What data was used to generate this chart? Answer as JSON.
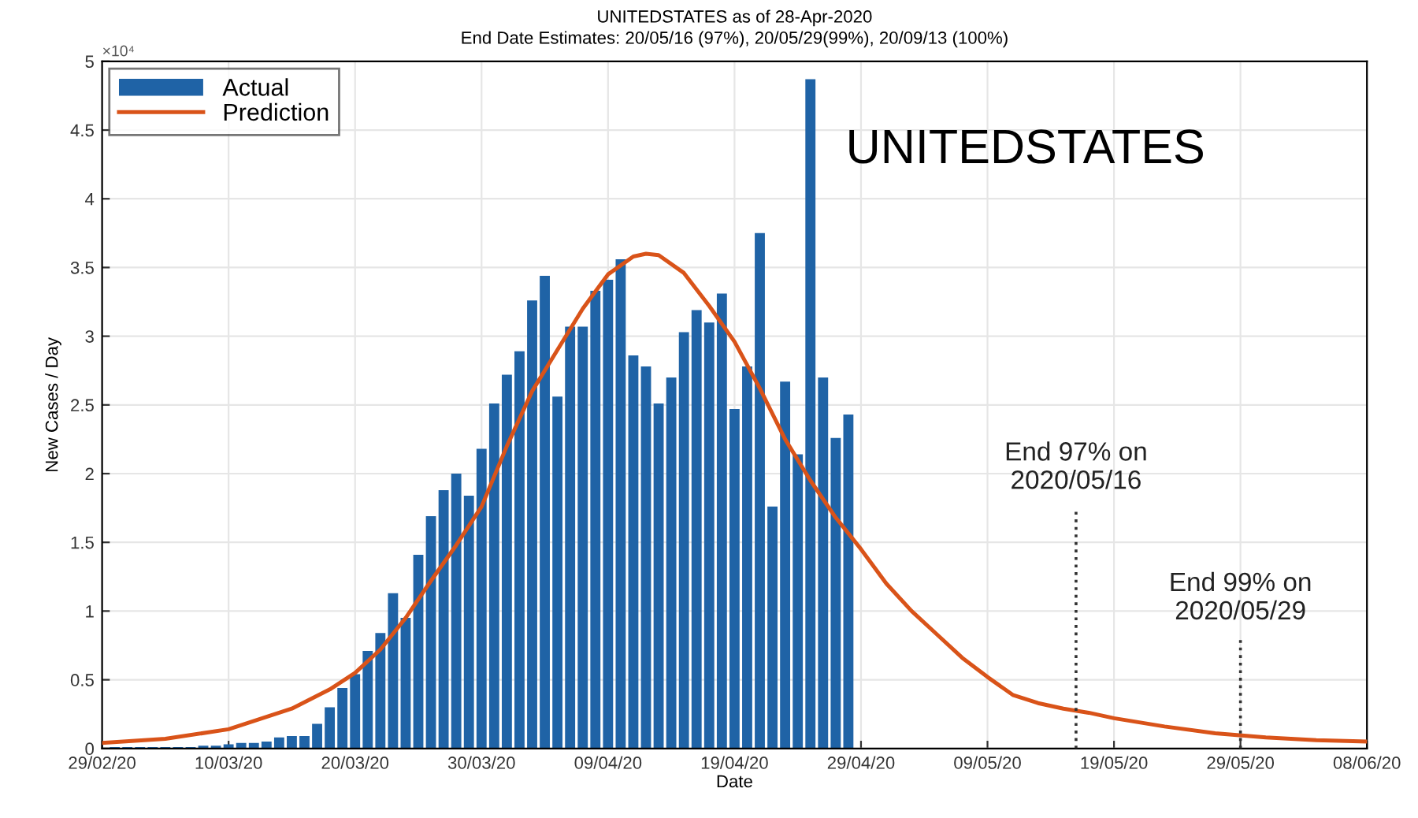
{
  "chart_data": {
    "type": "bar",
    "title": "UNITEDSTATES as of 28-Apr-2020",
    "subtitle": "End Date Estimates: 20/05/16 (97%), 20/05/29(99%), 20/09/13 (100%)",
    "xlabel": "Date",
    "ylabel": "New Cases / Day",
    "annotations": [
      "×10⁴",
      "UNITEDSTATES"
    ],
    "x": [
      "2020-03-01",
      "2020-03-02",
      "2020-03-03",
      "2020-03-04",
      "2020-03-05",
      "2020-03-06",
      "2020-03-07",
      "2020-03-08",
      "2020-03-09",
      "2020-03-10",
      "2020-03-11",
      "2020-03-12",
      "2020-03-13",
      "2020-03-14",
      "2020-03-15",
      "2020-03-16",
      "2020-03-17",
      "2020-03-18",
      "2020-03-19",
      "2020-03-20",
      "2020-03-21",
      "2020-03-22",
      "2020-03-23",
      "2020-03-24",
      "2020-03-25",
      "2020-03-26",
      "2020-03-27",
      "2020-03-28",
      "2020-03-29",
      "2020-03-30",
      "2020-03-31",
      "2020-04-01",
      "2020-04-02",
      "2020-04-03",
      "2020-04-04",
      "2020-04-05",
      "2020-04-06",
      "2020-04-07",
      "2020-04-08",
      "2020-04-09",
      "2020-04-10",
      "2020-04-11",
      "2020-04-12",
      "2020-04-13",
      "2020-04-14",
      "2020-04-15",
      "2020-04-16",
      "2020-04-17",
      "2020-04-18",
      "2020-04-19",
      "2020-04-20",
      "2020-04-21",
      "2020-04-22",
      "2020-04-23",
      "2020-04-24",
      "2020-04-25",
      "2020-04-26",
      "2020-04-27",
      "2020-04-28"
    ],
    "series": [
      {
        "name": "Actual",
        "color": "#1f63a6",
        "values": [
          0.01,
          0.01,
          0.01,
          0.01,
          0.01,
          0.01,
          0.01,
          0.02,
          0.02,
          0.03,
          0.04,
          0.04,
          0.05,
          0.08,
          0.09,
          0.09,
          0.18,
          0.3,
          0.44,
          0.54,
          0.71,
          0.84,
          1.13,
          0.95,
          1.41,
          1.69,
          1.88,
          2.0,
          1.84,
          2.18,
          2.51,
          2.72,
          2.89,
          3.26,
          3.44,
          2.56,
          3.07,
          3.07,
          3.33,
          3.41,
          3.56,
          2.86,
          2.78,
          2.51,
          2.7,
          3.03,
          3.19,
          3.1,
          3.31,
          2.47,
          2.78,
          3.75,
          1.76,
          2.67,
          2.14,
          4.87,
          2.7,
          2.26,
          2.43
        ]
      },
      {
        "name": "Prediction",
        "type": "line",
        "color": "#d95319",
        "x": [
          "2020-02-29",
          "2020-03-05",
          "2020-03-10",
          "2020-03-15",
          "2020-03-18",
          "2020-03-20",
          "2020-03-22",
          "2020-03-24",
          "2020-03-26",
          "2020-03-28",
          "2020-03-30",
          "2020-04-01",
          "2020-04-03",
          "2020-04-05",
          "2020-04-07",
          "2020-04-09",
          "2020-04-11",
          "2020-04-12",
          "2020-04-13",
          "2020-04-15",
          "2020-04-17",
          "2020-04-19",
          "2020-04-21",
          "2020-04-23",
          "2020-04-25",
          "2020-04-27",
          "2020-04-29",
          "2020-05-01",
          "2020-05-03",
          "2020-05-05",
          "2020-05-07",
          "2020-05-09",
          "2020-05-11",
          "2020-05-13",
          "2020-05-15",
          "2020-05-17",
          "2020-05-19",
          "2020-05-23",
          "2020-05-27",
          "2020-05-31",
          "2020-06-04",
          "2020-06-08"
        ],
        "values": [
          0.04,
          0.07,
          0.14,
          0.29,
          0.43,
          0.55,
          0.72,
          0.95,
          1.22,
          1.48,
          1.76,
          2.2,
          2.6,
          2.9,
          3.2,
          3.45,
          3.58,
          3.6,
          3.59,
          3.46,
          3.22,
          2.96,
          2.62,
          2.25,
          1.95,
          1.68,
          1.45,
          1.2,
          1.0,
          0.83,
          0.66,
          0.52,
          0.39,
          0.33,
          0.29,
          0.26,
          0.22,
          0.16,
          0.11,
          0.08,
          0.06,
          0.05
        ]
      }
    ],
    "xlim": [
      "2020-02-29",
      "2020-06-08"
    ],
    "xticks": [
      {
        "value": "2020-02-29",
        "label": "29/02/20"
      },
      {
        "value": "2020-03-10",
        "label": "10/03/20"
      },
      {
        "value": "2020-03-20",
        "label": "20/03/20"
      },
      {
        "value": "2020-03-30",
        "label": "30/03/20"
      },
      {
        "value": "2020-04-09",
        "label": "09/04/20"
      },
      {
        "value": "2020-04-19",
        "label": "19/04/20"
      },
      {
        "value": "2020-04-29",
        "label": "29/04/20"
      },
      {
        "value": "2020-05-09",
        "label": "09/05/20"
      },
      {
        "value": "2020-05-19",
        "label": "19/05/20"
      },
      {
        "value": "2020-05-29",
        "label": "29/05/20"
      },
      {
        "value": "2020-06-08",
        "label": "08/06/20"
      }
    ],
    "ylim": [
      0,
      5
    ],
    "yticks": [
      0,
      0.5,
      1,
      1.5,
      2,
      2.5,
      3,
      3.5,
      4,
      4.5,
      5
    ],
    "ref_lines": [
      {
        "axis": "x",
        "value": "2020-05-16",
        "label": "End 97% on\n2020/05/16",
        "color": "#333333",
        "line_style": "dotted"
      },
      {
        "axis": "x",
        "value": "2020-05-29",
        "label": "End 99% on\n2020/05/29",
        "color": "#333333",
        "line_style": "dotted"
      }
    ],
    "grid": true,
    "legend": "top left"
  }
}
